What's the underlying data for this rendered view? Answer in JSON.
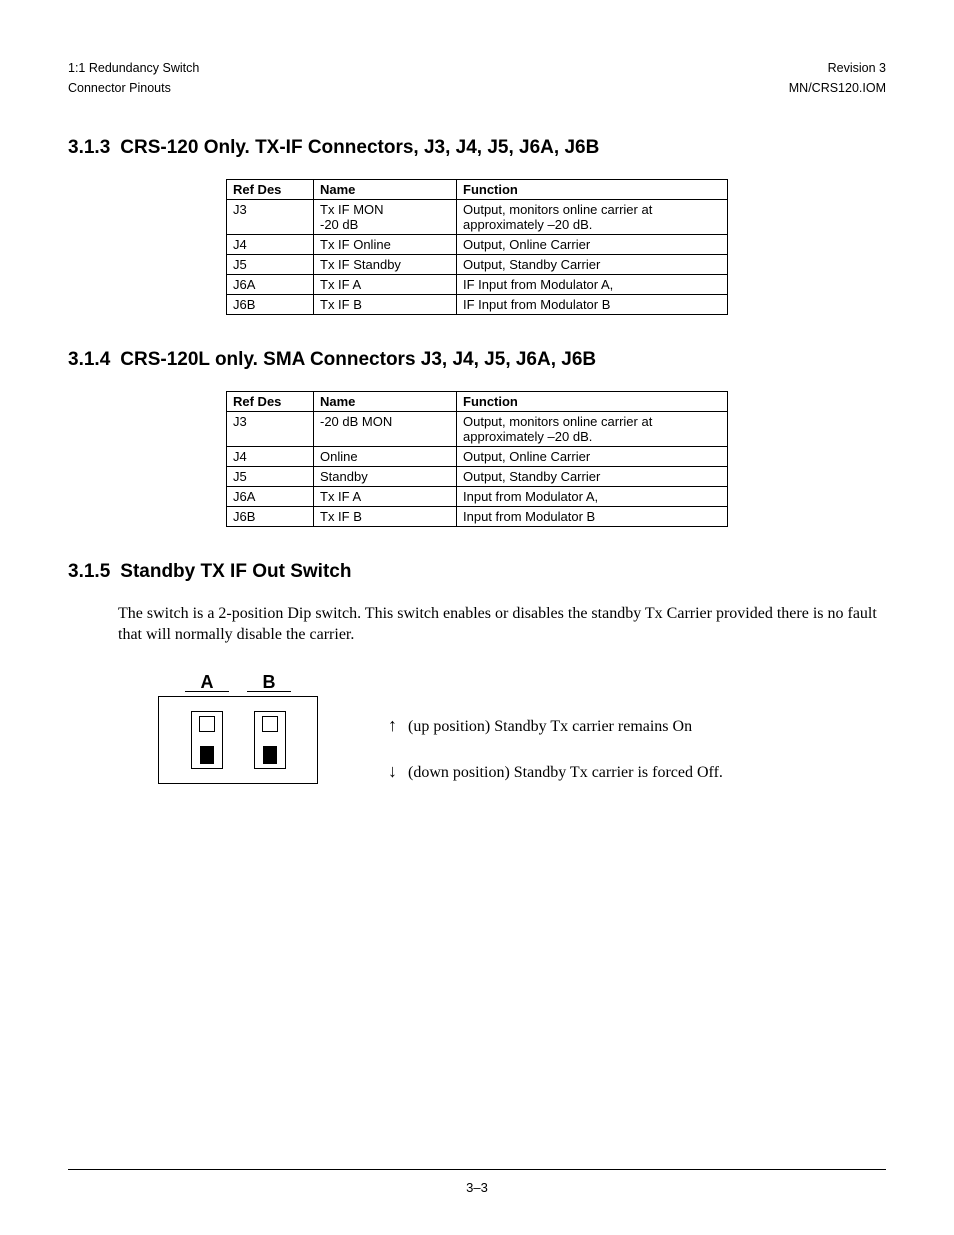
{
  "header": {
    "left_line1": "1:1 Redundancy Switch",
    "left_line2": "Connector Pinouts",
    "right_line1": "Revision 3",
    "right_line2": "MN/CRS120.IOM"
  },
  "sections": {
    "s313": {
      "num": "3.1.3",
      "title": "CRS-120 Only. TX-IF Connectors, J3, J4, J5, J6A, J6B"
    },
    "s314": {
      "num": "3.1.4",
      "title": "CRS-120L only. SMA Connectors J3, J4, J5, J6A, J6B"
    },
    "s315": {
      "num": "3.1.5",
      "title": "Standby TX IF Out Switch"
    }
  },
  "table_headers": {
    "refdes": "Ref Des",
    "name": "Name",
    "function": "Function"
  },
  "table313": [
    {
      "ref": "J3",
      "name": "Tx IF MON\n-20 dB",
      "func": "Output, monitors online carrier at approximately –20 dB."
    },
    {
      "ref": "J4",
      "name": "Tx IF Online",
      "func": "Output, Online Carrier"
    },
    {
      "ref": "J5",
      "name": "Tx IF Standby",
      "func": "Output, Standby Carrier"
    },
    {
      "ref": "J6A",
      "name": "Tx IF A",
      "func": "IF Input from Modulator A,"
    },
    {
      "ref": "J6B",
      "name": "Tx IF B",
      "func": "IF Input from Modulator B"
    }
  ],
  "table314": [
    {
      "ref": "J3",
      "name": "-20 dB MON",
      "func": "Output, monitors online carrier at approximately –20 dB."
    },
    {
      "ref": "J4",
      "name": "Online",
      "func": "Output, Online Carrier"
    },
    {
      "ref": "J5",
      "name": "Standby",
      "func": "Output, Standby Carrier"
    },
    {
      "ref": "J6A",
      "name": "Tx IF A",
      "func": "Input from Modulator A,"
    },
    {
      "ref": "J6B",
      "name": "Tx IF B",
      "func": "Input from Modulator B"
    }
  ],
  "body315": "The switch is a 2-position Dip switch. This switch enables or disables the standby Tx Carrier provided there is no fault that will normally disable the carrier.",
  "dip": {
    "labelA": "A",
    "labelB": "B"
  },
  "switch_positions": {
    "up": "(up position) Standby Tx carrier remains On",
    "down": "(down position) Standby Tx carrier is forced Off."
  },
  "arrows": {
    "up": "↑",
    "down": "↓"
  },
  "footer_page": "3–3",
  "column_widths": {
    "refdes": 74,
    "name": 130,
    "func": 258
  }
}
